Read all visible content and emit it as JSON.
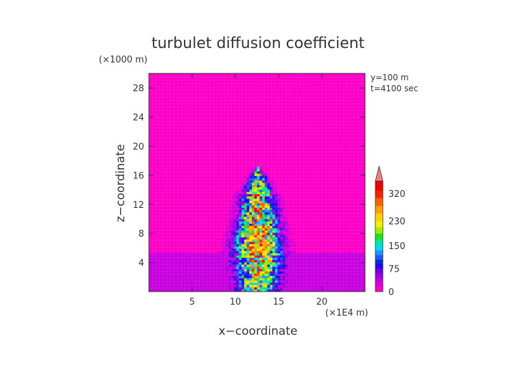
{
  "chart_data": {
    "type": "heatmap",
    "title": "turbulet diffusion coefficient",
    "xlabel": "x−coordinate",
    "ylabel": "z−coordinate",
    "x_unit": "(×1E4 m)",
    "z_unit": "(×1000 m)",
    "annotations": [
      "y=100 m",
      "t=4100 sec"
    ],
    "xlim": [
      0,
      25
    ],
    "ylim": [
      0,
      30
    ],
    "x_ticks": [
      5,
      10,
      15,
      20
    ],
    "x_tick_labels": [
      "5",
      "10",
      "15",
      "20"
    ],
    "y_ticks": [
      4,
      8,
      12,
      16,
      20,
      24,
      28
    ],
    "y_tick_labels": [
      "4",
      "8",
      "12",
      "16",
      "20",
      "24",
      "28"
    ],
    "colorbar": {
      "min": 0,
      "max": 360,
      "extend": "max",
      "tick_values": [
        0,
        75,
        150,
        230,
        320
      ],
      "tick_labels": [
        "0",
        "75",
        "150",
        "230",
        "320"
      ],
      "levels": [
        {
          "from": 0,
          "to": 15,
          "color": "#ff00c8"
        },
        {
          "from": 15,
          "to": 30,
          "color": "#e200d4"
        },
        {
          "from": 30,
          "to": 45,
          "color": "#c800e0"
        },
        {
          "from": 45,
          "to": 60,
          "color": "#9a00e0"
        },
        {
          "from": 60,
          "to": 75,
          "color": "#6e00e6"
        },
        {
          "from": 75,
          "to": 90,
          "color": "#2200ff"
        },
        {
          "from": 90,
          "to": 105,
          "color": "#0a2ad0"
        },
        {
          "from": 105,
          "to": 120,
          "color": "#1e5aff"
        },
        {
          "from": 120,
          "to": 135,
          "color": "#1e96ff"
        },
        {
          "from": 135,
          "to": 150,
          "color": "#00d8ff"
        },
        {
          "from": 150,
          "to": 170,
          "color": "#00e8a0"
        },
        {
          "from": 170,
          "to": 190,
          "color": "#20e020"
        },
        {
          "from": 190,
          "to": 210,
          "color": "#a0f000"
        },
        {
          "from": 210,
          "to": 230,
          "color": "#f0f000"
        },
        {
          "from": 230,
          "to": 255,
          "color": "#ffd000"
        },
        {
          "from": 255,
          "to": 280,
          "color": "#ffa000"
        },
        {
          "from": 280,
          "to": 305,
          "color": "#ff6000"
        },
        {
          "from": 305,
          "to": 330,
          "color": "#ff2000"
        },
        {
          "from": 330,
          "to": 360,
          "color": "#f00000"
        }
      ],
      "extend_color": "#f08080"
    },
    "field": {
      "background_value": 8,
      "surface_layer": {
        "z_from": 0,
        "z_to": 5.2,
        "value": 40
      },
      "plume": {
        "x_center": 12.6,
        "z_top": 16.8,
        "core": [
          {
            "z": 1,
            "value": 190
          },
          {
            "z": 4,
            "value": 240
          },
          {
            "z": 8,
            "value": 260
          },
          {
            "z": 12,
            "value": 230
          },
          {
            "z": 15,
            "value": 200
          },
          {
            "z": 16.5,
            "value": 150
          }
        ],
        "half_width": [
          {
            "z": 0,
            "value": 3.0
          },
          {
            "z": 5,
            "value": 3.4
          },
          {
            "z": 9,
            "value": 2.8
          },
          {
            "z": 13,
            "value": 2.2
          },
          {
            "z": 16,
            "value": 1.0
          },
          {
            "z": 17,
            "value": 0.3
          }
        ]
      }
    }
  }
}
